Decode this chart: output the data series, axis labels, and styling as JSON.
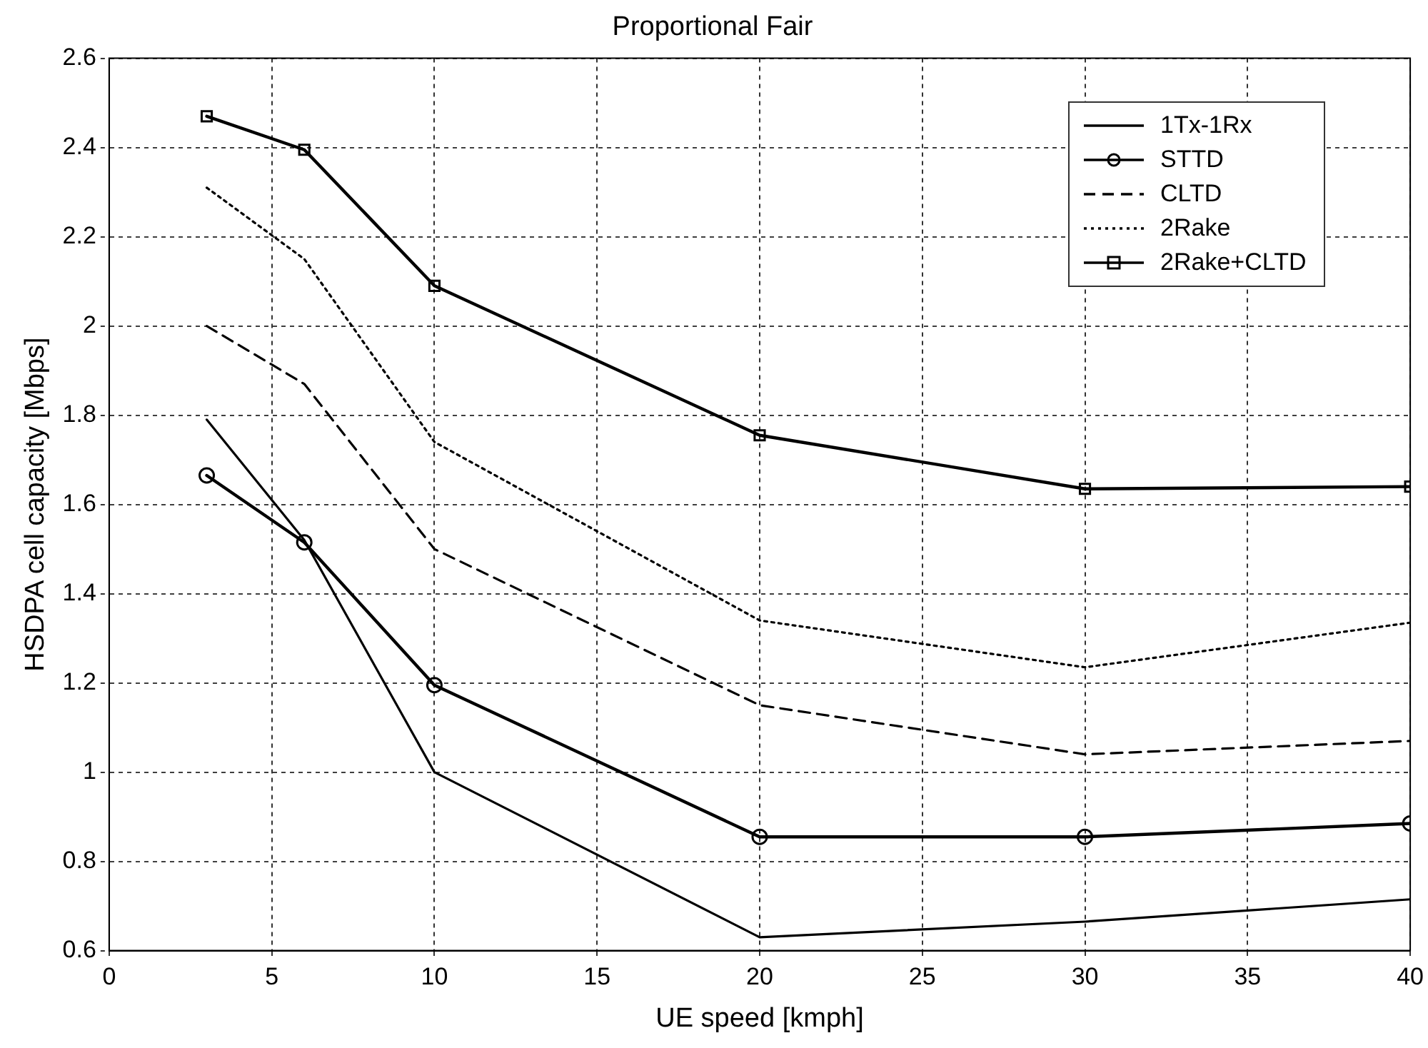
{
  "chart_data": {
    "type": "line",
    "title": "Proportional Fair",
    "xlabel": "UE speed [kmph]",
    "ylabel": "HSDPA cell capacity [Mbps]",
    "x": [
      3,
      6,
      10,
      20,
      30,
      40
    ],
    "series": [
      {
        "name": "1Tx-1Rx",
        "color": "#000000",
        "marker": "none",
        "line_style": "solid",
        "values": [
          1.79,
          1.52,
          1.0,
          0.63,
          0.665,
          0.715
        ]
      },
      {
        "name": "STTD",
        "color": "#000000",
        "marker": "circle",
        "line_style": "solid",
        "values": [
          1.665,
          1.515,
          1.195,
          0.855,
          0.855,
          0.885
        ]
      },
      {
        "name": "CLTD",
        "color": "#000000",
        "marker": "none",
        "line_style": "dashed",
        "values": [
          2.0,
          1.87,
          1.5,
          1.15,
          1.04,
          1.07
        ]
      },
      {
        "name": "2Rake",
        "color": "#000000",
        "marker": "none",
        "line_style": "dotted",
        "values": [
          2.31,
          2.15,
          1.74,
          1.34,
          1.235,
          1.335
        ]
      },
      {
        "name": "2Rake+CLTD",
        "color": "#000000",
        "marker": "square",
        "line_style": "solid",
        "values": [
          2.47,
          2.395,
          2.09,
          1.755,
          1.635,
          1.64
        ]
      }
    ],
    "xlim": [
      0,
      40
    ],
    "xticks": [
      0,
      5,
      10,
      15,
      20,
      25,
      30,
      35,
      40
    ],
    "ylim": [
      0.6,
      2.6
    ],
    "yticks": [
      0.6,
      0.8,
      1,
      1.2,
      1.4,
      1.6,
      1.8,
      2,
      2.2,
      2.4,
      2.6
    ],
    "grid": true,
    "legend": "top right"
  }
}
